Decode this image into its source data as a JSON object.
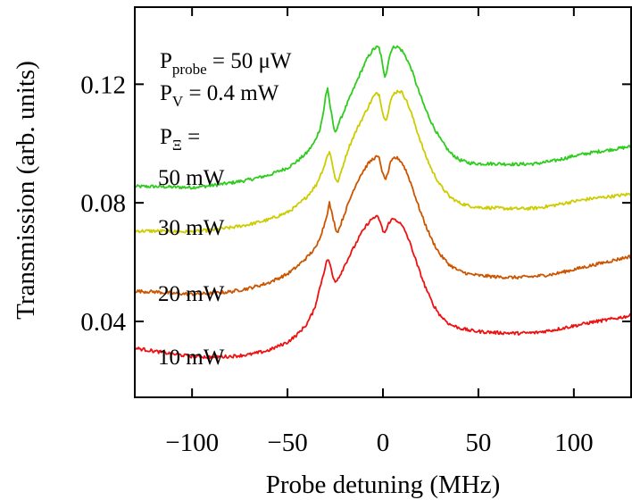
{
  "chart_data": {
    "type": "line",
    "xlabel": "Probe detuning (MHz)",
    "ylabel": "Transmission (arb. units)",
    "xlim": [
      -130,
      130
    ],
    "ylim": [
      0.0144,
      0.146
    ],
    "x_ticks": [
      -100,
      -50,
      0,
      50,
      100
    ],
    "x_tick_labels": [
      "−100",
      "−50",
      "0",
      "50",
      "100"
    ],
    "y_ticks": [
      0.04,
      0.08,
      0.12
    ],
    "y_tick_labels": [
      "0.04",
      "0.08",
      "0.12"
    ],
    "grid": false,
    "annotations": [
      {
        "main": "P",
        "sub": "probe",
        "rest": " = 50 μW"
      },
      {
        "main": "P",
        "sub": "V",
        "rest": " = 0.4 mW"
      },
      {
        "main": "P",
        "sub": "Ξ",
        "rest": " ="
      }
    ],
    "series": [
      {
        "name": "50 mW",
        "color": "#2ecc1e",
        "x": [
          -130,
          -120,
          -110,
          -100,
          -90,
          -80,
          -70,
          -60,
          -50,
          -45,
          -40,
          -36,
          -33,
          -31,
          -30,
          -29,
          -28,
          -26,
          -25,
          -24,
          -22,
          -20,
          -16,
          -12,
          -8,
          -5,
          -3,
          -2,
          -1,
          0,
          1,
          2,
          3,
          4,
          6,
          8,
          10,
          12,
          15,
          18,
          22,
          26,
          30,
          35,
          40,
          45,
          50,
          60,
          70,
          80,
          90,
          100,
          110,
          120,
          130
        ],
        "y": [
          0.0855,
          0.0855,
          0.0853,
          0.0852,
          0.0858,
          0.0867,
          0.0878,
          0.0893,
          0.0918,
          0.094,
          0.0968,
          0.1003,
          0.105,
          0.111,
          0.1162,
          0.1188,
          0.114,
          0.106,
          0.1035,
          0.1055,
          0.1085,
          0.1115,
          0.1175,
          0.1235,
          0.129,
          0.1318,
          0.1325,
          0.1322,
          0.1295,
          0.1255,
          0.1228,
          0.1245,
          0.128,
          0.131,
          0.1328,
          0.1325,
          0.1313,
          0.1292,
          0.125,
          0.119,
          0.112,
          0.1063,
          0.1015,
          0.097,
          0.0945,
          0.0935,
          0.0932,
          0.0932,
          0.093,
          0.0932,
          0.0942,
          0.0958,
          0.097,
          0.098,
          0.099
        ]
      },
      {
        "name": "30 mW",
        "color": "#cccc00",
        "x": [
          -130,
          -120,
          -110,
          -100,
          -90,
          -80,
          -70,
          -60,
          -50,
          -45,
          -40,
          -35,
          -31,
          -29,
          -28,
          -27,
          -25,
          -24,
          -23,
          -21,
          -18,
          -15,
          -12,
          -8,
          -5,
          -3,
          -2,
          -1,
          0,
          1,
          2,
          3,
          4,
          6,
          8,
          10,
          12,
          15,
          18,
          22,
          26,
          30,
          35,
          40,
          45,
          50,
          60,
          70,
          80,
          90,
          100,
          110,
          120,
          130
        ],
        "y": [
          0.0705,
          0.0705,
          0.0703,
          0.0702,
          0.0708,
          0.0716,
          0.0727,
          0.0743,
          0.0768,
          0.079,
          0.082,
          0.086,
          0.092,
          0.096,
          0.0975,
          0.0945,
          0.0885,
          0.0868,
          0.088,
          0.0925,
          0.0985,
          0.103,
          0.107,
          0.112,
          0.1158,
          0.117,
          0.1165,
          0.1135,
          0.11,
          0.108,
          0.1088,
          0.1115,
          0.1145,
          0.117,
          0.1178,
          0.1172,
          0.115,
          0.11,
          0.104,
          0.0965,
          0.0905,
          0.086,
          0.082,
          0.08,
          0.079,
          0.0785,
          0.0782,
          0.078,
          0.0782,
          0.0792,
          0.0805,
          0.0815,
          0.0822,
          0.083
        ]
      },
      {
        "name": "20 mW",
        "color": "#cc5500",
        "x": [
          -130,
          -120,
          -110,
          -100,
          -90,
          -80,
          -70,
          -60,
          -50,
          -45,
          -40,
          -35,
          -31,
          -29,
          -28,
          -27,
          -25,
          -24,
          -23,
          -21,
          -18,
          -15,
          -12,
          -8,
          -5,
          -3,
          -2,
          -1,
          0,
          1,
          2,
          3,
          4,
          6,
          8,
          10,
          12,
          15,
          18,
          22,
          26,
          30,
          35,
          40,
          45,
          50,
          60,
          70,
          80,
          90,
          100,
          110,
          120,
          130
        ],
        "y": [
          0.0502,
          0.05,
          0.0495,
          0.0492,
          0.0494,
          0.05,
          0.0512,
          0.053,
          0.056,
          0.0585,
          0.0615,
          0.065,
          0.072,
          0.077,
          0.08,
          0.077,
          0.072,
          0.07,
          0.0712,
          0.0748,
          0.08,
          0.085,
          0.089,
          0.093,
          0.095,
          0.0955,
          0.095,
          0.0925,
          0.0895,
          0.088,
          0.0888,
          0.091,
          0.0935,
          0.0952,
          0.095,
          0.0935,
          0.091,
          0.086,
          0.08,
          0.073,
          0.067,
          0.0625,
          0.059,
          0.057,
          0.056,
          0.0555,
          0.055,
          0.0548,
          0.0552,
          0.056,
          0.0575,
          0.059,
          0.0605,
          0.062
        ]
      },
      {
        "name": "10 mW",
        "color": "#ee1111",
        "x": [
          -130,
          -120,
          -110,
          -100,
          -90,
          -80,
          -70,
          -60,
          -50,
          -45,
          -40,
          -36,
          -32,
          -30,
          -29,
          -28,
          -27,
          -26,
          -25,
          -23,
          -20,
          -16,
          -12,
          -8,
          -5,
          -3,
          -2,
          -1,
          0,
          1,
          2,
          3,
          4,
          6,
          8,
          10,
          12,
          15,
          18,
          22,
          26,
          30,
          35,
          40,
          45,
          50,
          60,
          70,
          80,
          90,
          100,
          110,
          120,
          130
        ],
        "y": [
          0.031,
          0.03,
          0.029,
          0.0282,
          0.028,
          0.0282,
          0.0288,
          0.0302,
          0.033,
          0.0355,
          0.039,
          0.044,
          0.054,
          0.059,
          0.061,
          0.06,
          0.057,
          0.0545,
          0.0535,
          0.055,
          0.059,
          0.064,
          0.069,
          0.073,
          0.075,
          0.0752,
          0.0745,
          0.0725,
          0.0705,
          0.07,
          0.0712,
          0.073,
          0.0742,
          0.0745,
          0.0738,
          0.0722,
          0.07,
          0.065,
          0.059,
          0.052,
          0.046,
          0.042,
          0.039,
          0.0378,
          0.037,
          0.0366,
          0.0362,
          0.036,
          0.0362,
          0.0372,
          0.0385,
          0.0398,
          0.0408,
          0.042
        ]
      }
    ]
  }
}
